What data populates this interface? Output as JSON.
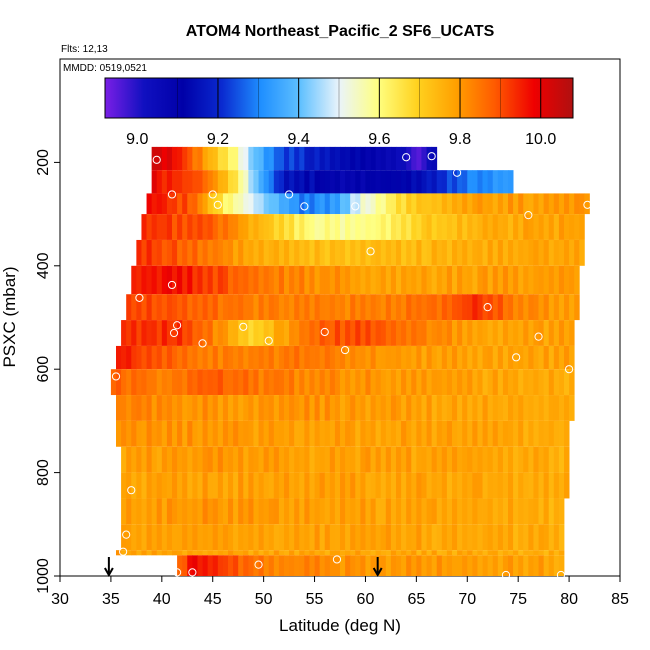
{
  "chart_data": {
    "type": "heatmap",
    "title": "ATOM4 Northeast_Pacific_2 SF6_UCATS",
    "flights_note": "Flts: 12,13",
    "date_note": "MMDD: 0519,0521",
    "xlabel": "Latitude (deg N)",
    "ylabel": "PSXC (mbar)",
    "xlim": [
      30,
      85
    ],
    "ylim": [
      1000,
      0
    ],
    "x_ticks": [
      30,
      35,
      40,
      45,
      50,
      55,
      60,
      65,
      70,
      75,
      80,
      85
    ],
    "x_tick_labels": [
      "30",
      "35",
      "40",
      "45",
      "50",
      "55",
      "60",
      "65",
      "70",
      "75",
      "80",
      "85"
    ],
    "y_ticks": [
      200,
      400,
      600,
      800,
      1000
    ],
    "y_tick_labels": [
      "200",
      "400",
      "600",
      "800",
      "1000"
    ],
    "colorbar": {
      "range": [
        8.92,
        10.08
      ],
      "ticks": [
        9.0,
        9.2,
        9.4,
        9.6,
        9.8,
        10.0
      ],
      "tick_labels": [
        "9.0",
        "9.2",
        "9.4",
        "9.6",
        "9.8",
        "10.0"
      ],
      "colors": [
        "#7a1fe6",
        "#1010c0",
        "#0000a8",
        "#0a2ad0",
        "#1f8fff",
        "#5fc0ff",
        "#eaf4fb",
        "#ffff80",
        "#ffd21f",
        "#ffa000",
        "#ff5a00",
        "#ef0000",
        "#b01010"
      ]
    },
    "layers": [
      {
        "p_top": 170,
        "p_bot": 215,
        "lat_min": 39.0,
        "lat_max": 67.0,
        "anchors": [
          [
            39.0,
            10.05
          ],
          [
            41.0,
            10.02
          ],
          [
            44.0,
            9.82
          ],
          [
            47.0,
            9.62
          ],
          [
            49.0,
            9.42
          ],
          [
            52.0,
            9.25
          ],
          [
            56.0,
            9.18
          ],
          [
            60.0,
            9.12
          ],
          [
            64.0,
            9.05
          ],
          [
            65.0,
            8.95
          ],
          [
            67.0,
            9.1
          ]
        ]
      },
      {
        "p_top": 215,
        "p_bot": 260,
        "lat_min": 39.0,
        "lat_max": 74.5,
        "anchors": [
          [
            39.0,
            10.0
          ],
          [
            44.0,
            9.9
          ],
          [
            47.0,
            9.7
          ],
          [
            49.0,
            9.45
          ],
          [
            52.0,
            9.18
          ],
          [
            58.0,
            9.1
          ],
          [
            65.0,
            9.15
          ],
          [
            70.0,
            9.3
          ],
          [
            74.5,
            9.35
          ]
        ]
      },
      {
        "p_top": 260,
        "p_bot": 300,
        "lat_min": 38.5,
        "lat_max": 82.0,
        "anchors": [
          [
            38.5,
            10.0
          ],
          [
            43.0,
            9.9
          ],
          [
            46.0,
            9.65
          ],
          [
            50.0,
            9.45
          ],
          [
            54.0,
            9.3
          ],
          [
            57.0,
            9.35
          ],
          [
            60.0,
            9.55
          ],
          [
            64.0,
            9.7
          ],
          [
            70.0,
            9.8
          ],
          [
            82.0,
            9.82
          ]
        ]
      },
      {
        "p_top": 300,
        "p_bot": 350,
        "lat_min": 38.0,
        "lat_max": 81.5,
        "anchors": [
          [
            38.0,
            9.95
          ],
          [
            45.0,
            9.9
          ],
          [
            50.0,
            9.75
          ],
          [
            55.0,
            9.6
          ],
          [
            60.0,
            9.6
          ],
          [
            66.0,
            9.72
          ],
          [
            72.0,
            9.78
          ],
          [
            81.5,
            9.8
          ]
        ]
      },
      {
        "p_top": 350,
        "p_bot": 400,
        "lat_min": 37.5,
        "lat_max": 81.5,
        "anchors": [
          [
            37.5,
            9.95
          ],
          [
            42.0,
            9.9
          ],
          [
            48.0,
            9.8
          ],
          [
            54.0,
            9.75
          ],
          [
            62.0,
            9.75
          ],
          [
            70.0,
            9.78
          ],
          [
            81.5,
            9.8
          ]
        ]
      },
      {
        "p_top": 400,
        "p_bot": 455,
        "lat_min": 37.0,
        "lat_max": 81.0,
        "anchors": [
          [
            37.0,
            9.95
          ],
          [
            41.0,
            10.0
          ],
          [
            45.0,
            9.92
          ],
          [
            52.0,
            9.85
          ],
          [
            60.0,
            9.8
          ],
          [
            70.0,
            9.8
          ],
          [
            81.0,
            9.82
          ]
        ]
      },
      {
        "p_top": 455,
        "p_bot": 505,
        "lat_min": 36.5,
        "lat_max": 81.0,
        "anchors": [
          [
            36.5,
            9.92
          ],
          [
            42.0,
            9.9
          ],
          [
            50.0,
            9.85
          ],
          [
            60.0,
            9.85
          ],
          [
            67.0,
            9.87
          ],
          [
            71.0,
            9.95
          ],
          [
            75.0,
            9.85
          ],
          [
            81.0,
            9.8
          ]
        ]
      },
      {
        "p_top": 505,
        "p_bot": 555,
        "lat_min": 36.0,
        "lat_max": 80.5,
        "anchors": [
          [
            36.0,
            9.95
          ],
          [
            42.0,
            9.95
          ],
          [
            46.0,
            9.82
          ],
          [
            49.0,
            9.7
          ],
          [
            52.0,
            9.8
          ],
          [
            56.0,
            9.9
          ],
          [
            60.0,
            9.92
          ],
          [
            66.0,
            9.85
          ],
          [
            72.0,
            9.8
          ],
          [
            80.5,
            9.8
          ]
        ]
      },
      {
        "p_top": 555,
        "p_bot": 600,
        "lat_min": 35.5,
        "lat_max": 80.5,
        "anchors": [
          [
            35.5,
            10.0
          ],
          [
            38.0,
            9.92
          ],
          [
            45.0,
            9.85
          ],
          [
            55.0,
            9.86
          ],
          [
            60.0,
            9.82
          ],
          [
            70.0,
            9.8
          ],
          [
            80.5,
            9.8
          ]
        ]
      },
      {
        "p_top": 600,
        "p_bot": 650,
        "lat_min": 35.0,
        "lat_max": 80.5,
        "anchors": [
          [
            35.0,
            9.9
          ],
          [
            40.0,
            9.85
          ],
          [
            45.0,
            9.9
          ],
          [
            50.0,
            9.86
          ],
          [
            60.0,
            9.82
          ],
          [
            70.0,
            9.8
          ],
          [
            80.5,
            9.78
          ]
        ]
      },
      {
        "p_top": 650,
        "p_bot": 700,
        "lat_min": 35.5,
        "lat_max": 80.5,
        "anchors": [
          [
            35.5,
            9.85
          ],
          [
            45.0,
            9.82
          ],
          [
            55.0,
            9.82
          ],
          [
            65.0,
            9.8
          ],
          [
            80.5,
            9.78
          ]
        ]
      },
      {
        "p_top": 700,
        "p_bot": 750,
        "lat_min": 35.5,
        "lat_max": 80.0,
        "anchors": [
          [
            35.5,
            9.82
          ],
          [
            45.0,
            9.82
          ],
          [
            55.0,
            9.8
          ],
          [
            70.0,
            9.8
          ],
          [
            80.0,
            9.78
          ]
        ]
      },
      {
        "p_top": 750,
        "p_bot": 800,
        "lat_min": 36.0,
        "lat_max": 80.0,
        "anchors": [
          [
            36.0,
            9.8
          ],
          [
            45.0,
            9.82
          ],
          [
            55.0,
            9.8
          ],
          [
            70.0,
            9.8
          ],
          [
            80.0,
            9.78
          ]
        ]
      },
      {
        "p_top": 800,
        "p_bot": 850,
        "lat_min": 36.0,
        "lat_max": 80.0,
        "anchors": [
          [
            36.0,
            9.8
          ],
          [
            45.0,
            9.8
          ],
          [
            60.0,
            9.8
          ],
          [
            80.0,
            9.78
          ]
        ]
      },
      {
        "p_top": 850,
        "p_bot": 900,
        "lat_min": 36.0,
        "lat_max": 79.5,
        "anchors": [
          [
            36.0,
            9.8
          ],
          [
            45.0,
            9.82
          ],
          [
            60.0,
            9.8
          ],
          [
            79.5,
            9.78
          ]
        ]
      },
      {
        "p_top": 900,
        "p_bot": 950,
        "lat_min": 36.0,
        "lat_max": 79.5,
        "anchors": [
          [
            36.0,
            9.8
          ],
          [
            45.0,
            9.8
          ],
          [
            60.0,
            9.8
          ],
          [
            79.5,
            9.78
          ]
        ]
      },
      {
        "p_top": 950,
        "p_bot": 960,
        "lat_min": 35.5,
        "lat_max": 79.5,
        "anchors": [
          [
            35.5,
            9.8
          ],
          [
            79.5,
            9.78
          ]
        ]
      },
      {
        "p_top": 960,
        "p_bot": 1000,
        "lat_min": 41.5,
        "lat_max": 79.5,
        "anchors": [
          [
            41.5,
            9.85
          ],
          [
            43.0,
            10.0
          ],
          [
            45.0,
            9.95
          ],
          [
            50.0,
            9.85
          ],
          [
            60.0,
            9.82
          ],
          [
            79.5,
            9.8
          ]
        ]
      }
    ],
    "sample_points": [
      {
        "lat": 39.5,
        "p": 195
      },
      {
        "lat": 64.0,
        "p": 190
      },
      {
        "lat": 66.5,
        "p": 188
      },
      {
        "lat": 69.0,
        "p": 220
      },
      {
        "lat": 41.0,
        "p": 262
      },
      {
        "lat": 45.0,
        "p": 262
      },
      {
        "lat": 52.5,
        "p": 262
      },
      {
        "lat": 54.0,
        "p": 285
      },
      {
        "lat": 59.0,
        "p": 285
      },
      {
        "lat": 76.0,
        "p": 302
      },
      {
        "lat": 81.8,
        "p": 282
      },
      {
        "lat": 45.5,
        "p": 282
      },
      {
        "lat": 60.5,
        "p": 372
      },
      {
        "lat": 41.0,
        "p": 437
      },
      {
        "lat": 37.8,
        "p": 462
      },
      {
        "lat": 41.5,
        "p": 515
      },
      {
        "lat": 41.2,
        "p": 530
      },
      {
        "lat": 44.0,
        "p": 550
      },
      {
        "lat": 48.0,
        "p": 518
      },
      {
        "lat": 50.5,
        "p": 545
      },
      {
        "lat": 56.0,
        "p": 528
      },
      {
        "lat": 58.0,
        "p": 563
      },
      {
        "lat": 72.0,
        "p": 480
      },
      {
        "lat": 74.8,
        "p": 577
      },
      {
        "lat": 77.0,
        "p": 537
      },
      {
        "lat": 80.0,
        "p": 600
      },
      {
        "lat": 35.5,
        "p": 614
      },
      {
        "lat": 37.0,
        "p": 834
      },
      {
        "lat": 36.5,
        "p": 920
      },
      {
        "lat": 36.2,
        "p": 953
      },
      {
        "lat": 41.5,
        "p": 993
      },
      {
        "lat": 43.0,
        "p": 993
      },
      {
        "lat": 49.5,
        "p": 978
      },
      {
        "lat": 57.2,
        "p": 968
      },
      {
        "lat": 73.8,
        "p": 998
      },
      {
        "lat": 79.2,
        "p": 998
      }
    ],
    "arrows": [
      {
        "lat": 34.8
      },
      {
        "lat": 61.2
      }
    ]
  }
}
